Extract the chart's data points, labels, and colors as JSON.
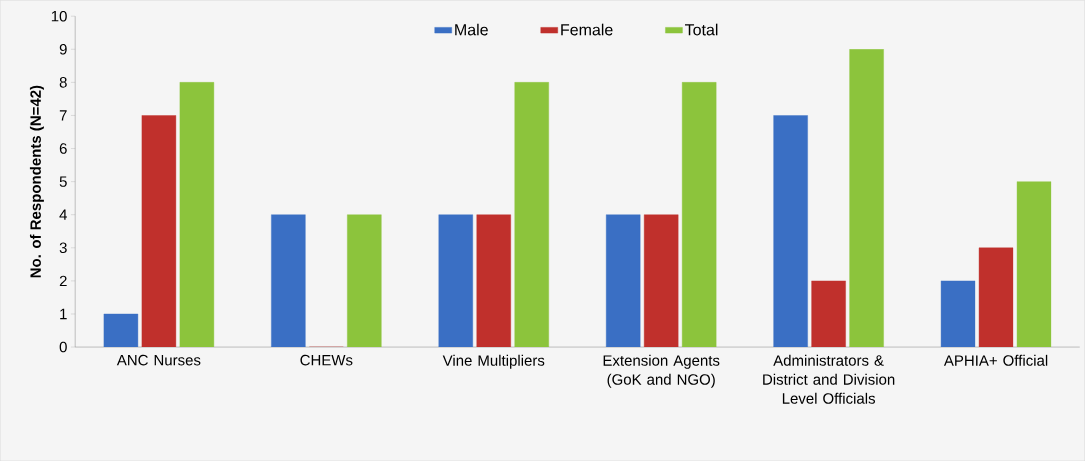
{
  "chart_data": {
    "type": "bar",
    "ylabel": "No. of Respondents (N=42)",
    "categories": [
      "ANC Nurses",
      "CHEWs",
      "Vine Multipliers",
      "Extension Agents (GoK and NGO)",
      "Administrators & District and Division Level Officials",
      "APHIA+ Official"
    ],
    "series": [
      {
        "name": "Male",
        "color": "#3a6fc4",
        "values": [
          1,
          4,
          4,
          4,
          7,
          2
        ]
      },
      {
        "name": "Female",
        "color": "#c0302c",
        "values": [
          7,
          0,
          4,
          4,
          2,
          3
        ]
      },
      {
        "name": "Total",
        "color": "#8cc43c",
        "values": [
          8,
          4,
          8,
          8,
          9,
          5
        ]
      }
    ],
    "ylim": [
      0,
      10
    ],
    "yticks": [
      0,
      1,
      2,
      3,
      4,
      5,
      6,
      7,
      8,
      9,
      10
    ],
    "grid": false,
    "legend": "top"
  }
}
